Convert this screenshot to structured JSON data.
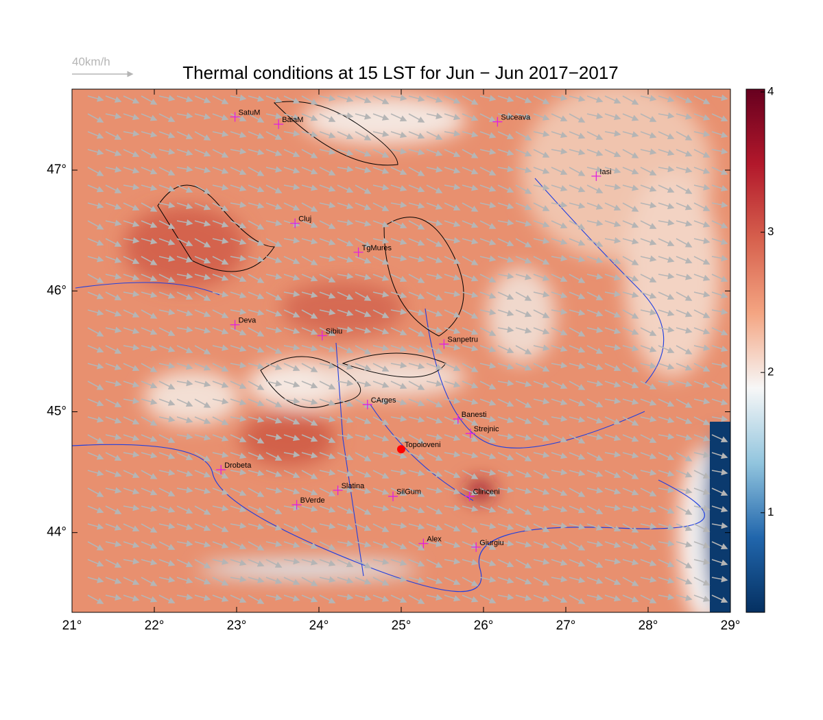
{
  "chart_data": {
    "type": "map",
    "title": "Thermal conditions at 15 LST for Jun − Jun  2017−2017",
    "wind_legend": "40km/h",
    "xlim": [
      21,
      29
    ],
    "ylim": [
      43.34,
      47.67
    ],
    "xticks": [
      {
        "value": 21,
        "label": "21°"
      },
      {
        "value": 22,
        "label": "22°"
      },
      {
        "value": 23,
        "label": "23°"
      },
      {
        "value": 24,
        "label": "24°"
      },
      {
        "value": 25,
        "label": "25°"
      },
      {
        "value": 26,
        "label": "26°"
      },
      {
        "value": 27,
        "label": "27°"
      },
      {
        "value": 28,
        "label": "28°"
      },
      {
        "value": 29,
        "label": "29°"
      }
    ],
    "yticks": [
      {
        "value": 44,
        "label": "44°"
      },
      {
        "value": 45,
        "label": "45°"
      },
      {
        "value": 46,
        "label": "46°"
      },
      {
        "value": 47,
        "label": "47°"
      }
    ],
    "clim": [
      0.29,
      4.02
    ],
    "cticks": [
      1,
      2,
      3,
      4
    ],
    "colormap": [
      "#053061",
      "#2166ac",
      "#92c5de",
      "#f7f7f7",
      "#f4a582",
      "#d6604d",
      "#b2182b",
      "#67001f"
    ],
    "marker_color": "#e020e0",
    "highlight_color": "#ff0000",
    "cities": [
      {
        "name": "SatuM",
        "lon": 22.98,
        "lat": 47.44,
        "marker": "plus"
      },
      {
        "name": "BaiaM",
        "lon": 23.51,
        "lat": 47.38,
        "marker": "plus"
      },
      {
        "name": "Suceava",
        "lon": 26.17,
        "lat": 47.4,
        "marker": "plus"
      },
      {
        "name": "Iasi",
        "lon": 27.37,
        "lat": 46.95,
        "marker": "plus"
      },
      {
        "name": "Cluj",
        "lon": 23.71,
        "lat": 46.56,
        "marker": "plus"
      },
      {
        "name": "TgMures",
        "lon": 24.48,
        "lat": 46.32,
        "marker": "plus"
      },
      {
        "name": "Deva",
        "lon": 22.98,
        "lat": 45.72,
        "marker": "plus"
      },
      {
        "name": "Sibiu",
        "lon": 24.04,
        "lat": 45.63,
        "marker": "plus"
      },
      {
        "name": "Sanpetru",
        "lon": 25.52,
        "lat": 45.56,
        "marker": "plus"
      },
      {
        "name": "CArges",
        "lon": 24.59,
        "lat": 45.06,
        "marker": "plus"
      },
      {
        "name": "Banesti",
        "lon": 25.69,
        "lat": 44.94,
        "marker": "plus"
      },
      {
        "name": "Strejnic",
        "lon": 25.84,
        "lat": 44.82,
        "marker": "plus"
      },
      {
        "name": "Topoloveni",
        "lon": 25.0,
        "lat": 44.69,
        "marker": "dot"
      },
      {
        "name": "Drobeta",
        "lon": 22.81,
        "lat": 44.52,
        "marker": "plus"
      },
      {
        "name": "Slatina",
        "lon": 24.23,
        "lat": 44.35,
        "marker": "plus"
      },
      {
        "name": "SilGum",
        "lon": 24.9,
        "lat": 44.3,
        "marker": "plus"
      },
      {
        "name": "Clinceni",
        "lon": 25.83,
        "lat": 44.3,
        "marker": "plus"
      },
      {
        "name": "BVerde",
        "lon": 23.73,
        "lat": 44.23,
        "marker": "plus"
      },
      {
        "name": "Alex",
        "lon": 25.27,
        "lat": 43.91,
        "marker": "plus"
      },
      {
        "name": "Giurgiu",
        "lon": 25.91,
        "lat": 43.88,
        "marker": "plus"
      }
    ]
  }
}
